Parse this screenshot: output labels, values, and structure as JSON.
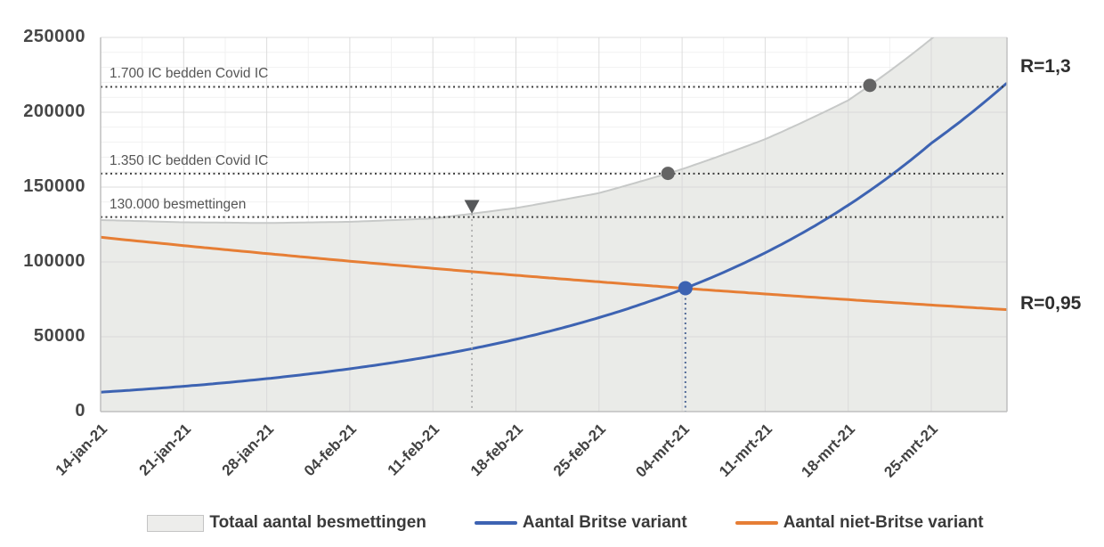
{
  "chart_data": {
    "type": "area",
    "title": "",
    "xlabel": "",
    "ylabel": "",
    "ylim": [
      0,
      250000
    ],
    "grid": true,
    "legend_position": "bottom",
    "x_labels": [
      "14-jan-21",
      "21-jan-21",
      "28-jan-21",
      "04-feb-21",
      "11-feb-21",
      "18-feb-21",
      "25-feb-21",
      "04-mrt-21",
      "11-mrt-21",
      "18-mrt-21",
      "25-mrt-21"
    ],
    "values_note": "weekly values; 12th value extends one unlabeled week past 25-mrt-21 (plot is clipped at right edge)",
    "y_ticks": [
      "0",
      "50000",
      "100000",
      "150000",
      "200000",
      "250000"
    ],
    "series": [
      {
        "name": "Totaal aantal besmettingen",
        "kind": "area",
        "color": "#c7c9c8",
        "fill": "#eaebe8",
        "values": [
          128000,
          126500,
          126000,
          126800,
          129000,
          136000,
          146000,
          162000,
          182000,
          208000,
          249000,
          300000
        ]
      },
      {
        "name": "Aantal Britse variant",
        "kind": "line",
        "color": "#3d63b2",
        "values": [
          13000,
          16900,
          22000,
          28600,
          37100,
          48300,
          62800,
          81600,
          106100,
          137900,
          179300,
          224000
        ]
      },
      {
        "name": "Aantal niet-Britse variant",
        "kind": "line",
        "color": "#e67e35",
        "values": [
          116500,
          110900,
          105600,
          100500,
          95700,
          91100,
          86700,
          82500,
          78600,
          74800,
          71200,
          67800
        ]
      }
    ],
    "hlines": [
      {
        "label": "1.700 IC bedden Covid IC",
        "value": 217000,
        "color": "#3c3c3c",
        "style": "dotted"
      },
      {
        "label": "1.350 IC bedden Covid IC",
        "value": 159000,
        "color": "#3c3c3c",
        "style": "dotted"
      },
      {
        "label": "130.000 besmettingen",
        "value": 130000,
        "color": "#3c3c3c",
        "style": "dotted"
      }
    ],
    "markers": [
      {
        "name": "total-crosses-130000",
        "shape": "triangle-down",
        "series": 0,
        "week": 4.47,
        "size": 9,
        "color": "#56585a",
        "vline": true,
        "vline_color": "#a3a3a3",
        "vline_dash": "2 4",
        "vline_width": 1.5
      },
      {
        "name": "total-reaches-1350-ic",
        "shape": "circle",
        "series": 0,
        "week": 6.83,
        "r": 7.5,
        "color": "#646464",
        "vline": false
      },
      {
        "name": "total-reaches-1700-ic",
        "shape": "circle",
        "series": 0,
        "week": 9.26,
        "r": 7.5,
        "color": "#646464",
        "vline": false
      },
      {
        "name": "britse-overtakes-niet-britse",
        "shape": "circle",
        "series": 1,
        "week": 7.04,
        "r": 8,
        "color": "#3d63b2",
        "vline": true,
        "vline_color": "#4f6896",
        "vline_dash": "2 3.5",
        "vline_width": 2
      }
    ],
    "r_labels": [
      {
        "text": "R=1,3",
        "at_value": 230000
      },
      {
        "text": "R=0,95",
        "at_value": 71500
      }
    ],
    "colors": {
      "background": "#ffffff",
      "major_grid": "#d7d7d7",
      "minor_grid": "#f1f1f1",
      "axis": "#bfbfbf",
      "annotation_text": "#565656",
      "tick_text": "#424242"
    }
  },
  "legend": {
    "items": [
      {
        "label": "Totaal aantal besmettingen",
        "swatch": "area",
        "color": "#ededeb"
      },
      {
        "label": "Aantal Britse variant",
        "swatch": "line",
        "color": "#3d63b2"
      },
      {
        "label": "Aantal niet-Britse variant",
        "swatch": "line",
        "color": "#e67e35"
      }
    ]
  }
}
